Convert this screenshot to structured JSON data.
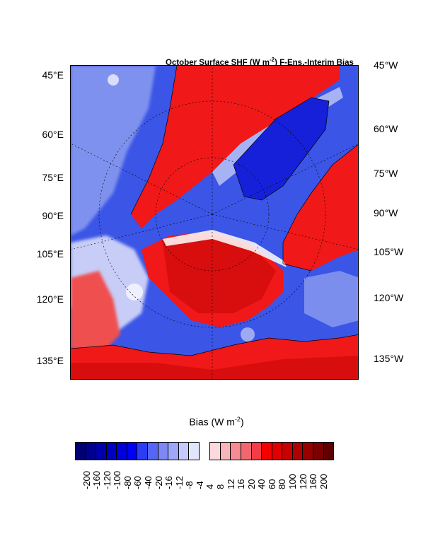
{
  "title_parts": {
    "prefix": "October Surface SHF (W m",
    "sup": "-2",
    "suffix": ") F-Ens.-Interim Bias"
  },
  "left_labels": [
    "45°E",
    "60°E",
    "75°E",
    "90°E",
    "105°E",
    "120°E",
    "135°E"
  ],
  "right_labels": [
    "45°W",
    "60°W",
    "75°W",
    "90°W",
    "105°W",
    "120°W",
    "135°W"
  ],
  "colorbar": {
    "title_prefix": "Bias (W m",
    "title_sup": "-2",
    "title_suffix": ")",
    "labels": [
      "-200",
      "-160",
      "-120",
      "-100",
      "-80",
      "-60",
      "-40",
      "-20",
      "-16",
      "-12",
      "-8",
      "-4",
      "4",
      "8",
      "12",
      "16",
      "20",
      "40",
      "60",
      "80",
      "100",
      "120",
      "160",
      "200"
    ],
    "colors": [
      "#000070",
      "#000090",
      "#0000a8",
      "#0000c0",
      "#0000dc",
      "#0000f5",
      "#2b3cf5",
      "#5566f5",
      "#7b88f5",
      "#9ea8f8",
      "#c4caf9",
      "#e2e6fb",
      "#ffffff",
      "#fbd9dc",
      "#f8b4b9",
      "#f58c94",
      "#f26670",
      "#f23c46",
      "#f50000",
      "#e00000",
      "#c80000",
      "#b00000",
      "#980000",
      "#7c0000",
      "#600000"
    ]
  },
  "map": {
    "palette": {
      "ocean_blue": "#3b55e6",
      "deep_blue": "#1520d8",
      "light_blue": "#8c9cf0",
      "red": "#f01818",
      "dark_red": "#c80808",
      "white": "#ffffff"
    }
  }
}
